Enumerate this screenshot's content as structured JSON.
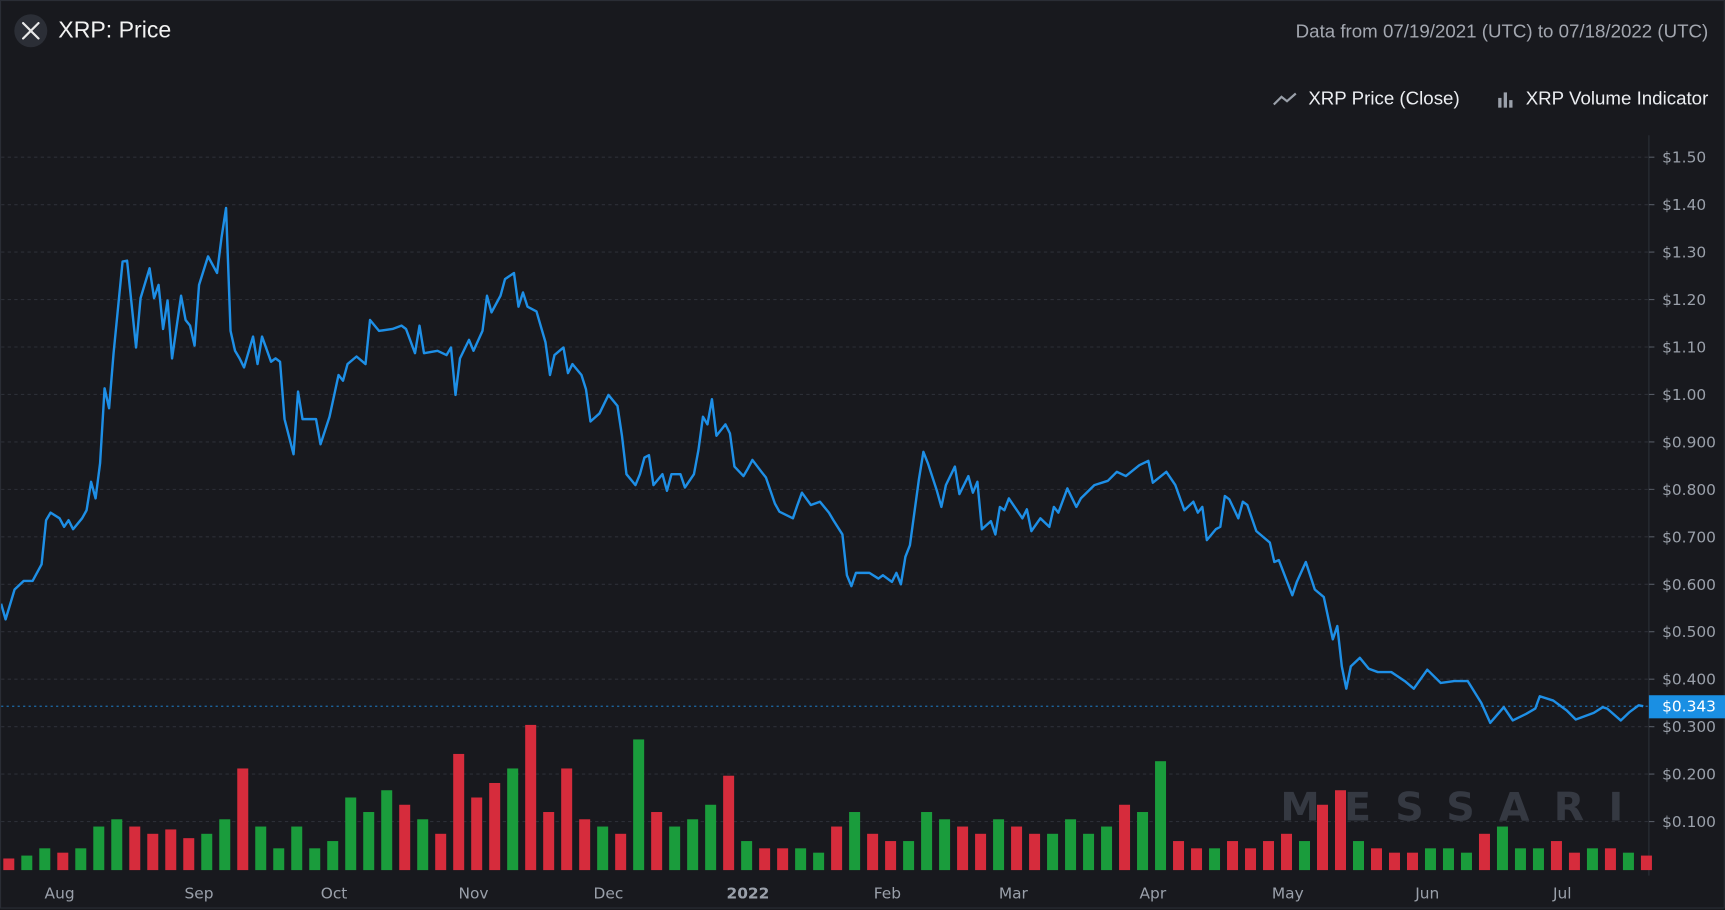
{
  "header": {
    "title": "XRP: Price",
    "date_range": "Data from 07/19/2021 (UTC) to 07/18/2022 (UTC)",
    "logo_icon": "xrp-logo-icon"
  },
  "legend": [
    {
      "label": "XRP Price (Close)",
      "icon": "line-chart-icon"
    },
    {
      "label": "XRP Volume Indicator",
      "icon": "bar-chart-icon"
    }
  ],
  "watermark": "MESSARI",
  "colors": {
    "line": "#1e8fe6",
    "up": "#1a9c3c",
    "down": "#d62c3c",
    "grid": "#2c2f37",
    "tag": "#1a8fe3"
  },
  "chart_data": {
    "type": "line",
    "title": "XRP: Price",
    "start_date": "07/19/2021",
    "end_date": "07/18/2022",
    "ylim": [
      0,
      1.55
    ],
    "y_ticks": [
      "$0.100",
      "$0.200",
      "$0.300",
      "$0.400",
      "$0.500",
      "$0.600",
      "$0.700",
      "$0.800",
      "$0.900",
      "$1.00",
      "$1.10",
      "$1.20",
      "$1.30",
      "$1.40",
      "$1.50"
    ],
    "y_tick_values": [
      0.1,
      0.2,
      0.3,
      0.4,
      0.5,
      0.6,
      0.7,
      0.8,
      0.9,
      1.0,
      1.1,
      1.2,
      1.3,
      1.4,
      1.5
    ],
    "x_ticks": [
      {
        "label": "Aug",
        "day": 13
      },
      {
        "label": "Sep",
        "day": 44
      },
      {
        "label": "Oct",
        "day": 74
      },
      {
        "label": "Nov",
        "day": 105
      },
      {
        "label": "Dec",
        "day": 135
      },
      {
        "label": "2022",
        "day": 166
      },
      {
        "label": "Feb",
        "day": 197
      },
      {
        "label": "Mar",
        "day": 225
      },
      {
        "label": "Apr",
        "day": 256
      },
      {
        "label": "May",
        "day": 286
      },
      {
        "label": "Jun",
        "day": 317
      },
      {
        "label": "Jul",
        "day": 347
      }
    ],
    "current_price_label": "$0.343",
    "current_price": 0.343,
    "series": [
      {
        "name": "XRP Price (Close)",
        "unit": "USD",
        "points_day_price": [
          [
            0,
            0.559
          ],
          [
            1,
            0.526
          ],
          [
            3,
            0.589
          ],
          [
            5,
            0.607
          ],
          [
            7,
            0.607
          ],
          [
            9,
            0.642
          ],
          [
            10,
            0.735
          ],
          [
            11,
            0.751
          ],
          [
            13,
            0.739
          ],
          [
            14,
            0.721
          ],
          [
            15,
            0.735
          ],
          [
            16,
            0.716
          ],
          [
            18,
            0.739
          ],
          [
            19,
            0.756
          ],
          [
            20,
            0.816
          ],
          [
            21,
            0.781
          ],
          [
            22,
            0.855
          ],
          [
            23,
            1.013
          ],
          [
            24,
            0.971
          ],
          [
            25,
            1.087
          ],
          [
            27,
            1.28
          ],
          [
            28,
            1.282
          ],
          [
            29,
            1.191
          ],
          [
            30,
            1.099
          ],
          [
            31,
            1.203
          ],
          [
            33,
            1.266
          ],
          [
            34,
            1.203
          ],
          [
            35,
            1.231
          ],
          [
            36,
            1.138
          ],
          [
            37,
            1.198
          ],
          [
            38,
            1.076
          ],
          [
            40,
            1.208
          ],
          [
            41,
            1.157
          ],
          [
            42,
            1.145
          ],
          [
            43,
            1.103
          ],
          [
            44,
            1.231
          ],
          [
            45,
            1.261
          ],
          [
            46,
            1.291
          ],
          [
            48,
            1.256
          ],
          [
            49,
            1.331
          ],
          [
            50,
            1.393
          ],
          [
            51,
            1.134
          ],
          [
            52,
            1.092
          ],
          [
            53,
            1.076
          ],
          [
            54,
            1.057
          ],
          [
            56,
            1.122
          ],
          [
            57,
            1.064
          ],
          [
            58,
            1.122
          ],
          [
            60,
            1.069
          ],
          [
            61,
            1.076
          ],
          [
            62,
            1.069
          ],
          [
            63,
            0.948
          ],
          [
            65,
            0.874
          ],
          [
            66,
            1.006
          ],
          [
            67,
            0.948
          ],
          [
            70,
            0.948
          ],
          [
            71,
            0.895
          ],
          [
            73,
            0.953
          ],
          [
            75,
            1.041
          ],
          [
            76,
            1.029
          ],
          [
            77,
            1.064
          ],
          [
            79,
            1.08
          ],
          [
            81,
            1.064
          ],
          [
            82,
            1.157
          ],
          [
            84,
            1.134
          ],
          [
            87,
            1.138
          ],
          [
            89,
            1.145
          ],
          [
            90,
            1.138
          ],
          [
            92,
            1.087
          ],
          [
            93,
            1.145
          ],
          [
            94,
            1.087
          ],
          [
            97,
            1.092
          ],
          [
            99,
            1.083
          ],
          [
            100,
            1.099
          ],
          [
            101,
            0.999
          ],
          [
            102,
            1.076
          ],
          [
            104,
            1.115
          ],
          [
            105,
            1.092
          ],
          [
            107,
            1.134
          ],
          [
            108,
            1.208
          ],
          [
            109,
            1.173
          ],
          [
            111,
            1.208
          ],
          [
            112,
            1.243
          ],
          [
            114,
            1.256
          ],
          [
            115,
            1.185
          ],
          [
            116,
            1.215
          ],
          [
            117,
            1.185
          ],
          [
            119,
            1.175
          ],
          [
            121,
            1.11
          ],
          [
            122,
            1.041
          ],
          [
            123,
            1.083
          ],
          [
            125,
            1.099
          ],
          [
            126,
            1.045
          ],
          [
            127,
            1.064
          ],
          [
            129,
            1.041
          ],
          [
            130,
            1.011
          ],
          [
            131,
            0.943
          ],
          [
            133,
            0.96
          ],
          [
            135,
            0.999
          ],
          [
            137,
            0.976
          ],
          [
            138,
            0.913
          ],
          [
            139,
            0.832
          ],
          [
            141,
            0.809
          ],
          [
            142,
            0.832
          ],
          [
            143,
            0.867
          ],
          [
            144,
            0.872
          ],
          [
            145,
            0.809
          ],
          [
            147,
            0.832
          ],
          [
            148,
            0.797
          ],
          [
            149,
            0.832
          ],
          [
            151,
            0.832
          ],
          [
            152,
            0.804
          ],
          [
            154,
            0.832
          ],
          [
            155,
            0.883
          ],
          [
            156,
            0.953
          ],
          [
            157,
            0.937
          ],
          [
            158,
            0.99
          ],
          [
            159,
            0.913
          ],
          [
            161,
            0.937
          ],
          [
            162,
            0.918
          ],
          [
            163,
            0.848
          ],
          [
            165,
            0.828
          ],
          [
            166,
            0.844
          ],
          [
            167,
            0.862
          ],
          [
            169,
            0.837
          ],
          [
            170,
            0.825
          ],
          [
            172,
            0.77
          ],
          [
            173,
            0.753
          ],
          [
            176,
            0.739
          ],
          [
            177,
            0.767
          ],
          [
            178,
            0.793
          ],
          [
            180,
            0.767
          ],
          [
            182,
            0.774
          ],
          [
            184,
            0.751
          ],
          [
            185,
            0.735
          ],
          [
            187,
            0.705
          ],
          [
            188,
            0.619
          ],
          [
            189,
            0.596
          ],
          [
            190,
            0.624
          ],
          [
            193,
            0.624
          ],
          [
            195,
            0.612
          ],
          [
            196,
            0.619
          ],
          [
            198,
            0.605
          ],
          [
            199,
            0.624
          ],
          [
            200,
            0.6
          ],
          [
            201,
            0.658
          ],
          [
            202,
            0.682
          ],
          [
            204,
            0.821
          ],
          [
            205,
            0.879
          ],
          [
            206,
            0.855
          ],
          [
            208,
            0.797
          ],
          [
            209,
            0.763
          ],
          [
            210,
            0.809
          ],
          [
            212,
            0.848
          ],
          [
            213,
            0.79
          ],
          [
            215,
            0.828
          ],
          [
            216,
            0.793
          ],
          [
            217,
            0.816
          ],
          [
            218,
            0.716
          ],
          [
            220,
            0.733
          ],
          [
            221,
            0.705
          ],
          [
            222,
            0.763
          ],
          [
            223,
            0.756
          ],
          [
            224,
            0.781
          ],
          [
            227,
            0.739
          ],
          [
            228,
            0.758
          ],
          [
            229,
            0.712
          ],
          [
            231,
            0.739
          ],
          [
            233,
            0.721
          ],
          [
            234,
            0.763
          ],
          [
            235,
            0.751
          ],
          [
            237,
            0.802
          ],
          [
            239,
            0.763
          ],
          [
            240,
            0.781
          ],
          [
            243,
            0.809
          ],
          [
            246,
            0.818
          ],
          [
            248,
            0.837
          ],
          [
            250,
            0.828
          ],
          [
            253,
            0.851
          ],
          [
            255,
            0.86
          ],
          [
            256,
            0.814
          ],
          [
            259,
            0.837
          ],
          [
            261,
            0.809
          ],
          [
            263,
            0.756
          ],
          [
            265,
            0.774
          ],
          [
            266,
            0.751
          ],
          [
            267,
            0.763
          ],
          [
            268,
            0.693
          ],
          [
            270,
            0.716
          ],
          [
            271,
            0.721
          ],
          [
            272,
            0.786
          ],
          [
            273,
            0.779
          ],
          [
            275,
            0.739
          ],
          [
            276,
            0.774
          ],
          [
            277,
            0.767
          ],
          [
            279,
            0.712
          ],
          [
            282,
            0.688
          ],
          [
            283,
            0.647
          ],
          [
            284,
            0.651
          ],
          [
            287,
            0.577
          ],
          [
            288,
            0.605
          ],
          [
            290,
            0.647
          ],
          [
            292,
            0.589
          ],
          [
            294,
            0.573
          ],
          [
            296,
            0.484
          ],
          [
            297,
            0.512
          ],
          [
            298,
            0.427
          ],
          [
            299,
            0.38
          ],
          [
            300,
            0.427
          ],
          [
            302,
            0.445
          ],
          [
            304,
            0.422
          ],
          [
            306,
            0.415
          ],
          [
            309,
            0.415
          ],
          [
            312,
            0.396
          ],
          [
            314,
            0.38
          ],
          [
            317,
            0.42
          ],
          [
            320,
            0.392
          ],
          [
            323,
            0.396
          ],
          [
            326,
            0.396
          ],
          [
            329,
            0.35
          ],
          [
            331,
            0.308
          ],
          [
            334,
            0.341
          ],
          [
            336,
            0.313
          ],
          [
            339,
            0.327
          ],
          [
            341,
            0.338
          ],
          [
            342,
            0.364
          ],
          [
            345,
            0.355
          ],
          [
            348,
            0.334
          ],
          [
            350,
            0.315
          ],
          [
            354,
            0.329
          ],
          [
            356,
            0.341
          ],
          [
            357,
            0.338
          ],
          [
            360,
            0.313
          ],
          [
            362,
            0.331
          ],
          [
            364,
            0.345
          ],
          [
            365,
            0.343
          ]
        ]
      },
      {
        "name": "XRP Volume Indicator",
        "unit": "relative (max = 1)",
        "sample_every_days": 4,
        "values": [
          0.08,
          0.1,
          0.15,
          0.12,
          0.15,
          0.3,
          0.35,
          0.3,
          0.25,
          0.28,
          0.22,
          0.25,
          0.35,
          0.7,
          0.3,
          0.15,
          0.3,
          0.15,
          0.2,
          0.5,
          0.4,
          0.55,
          0.45,
          0.35,
          0.25,
          0.8,
          0.5,
          0.6,
          0.7,
          1.0,
          0.4,
          0.7,
          0.35,
          0.3,
          0.25,
          0.9,
          0.4,
          0.3,
          0.35,
          0.45,
          0.65,
          0.2,
          0.15,
          0.15,
          0.15,
          0.12,
          0.3,
          0.4,
          0.25,
          0.2,
          0.2,
          0.4,
          0.35,
          0.3,
          0.25,
          0.35,
          0.3,
          0.25,
          0.25,
          0.35,
          0.25,
          0.3,
          0.45,
          0.4,
          0.75,
          0.2,
          0.15,
          0.15,
          0.2,
          0.15,
          0.2,
          0.25,
          0.2,
          0.45,
          0.55,
          0.2,
          0.15,
          0.12,
          0.12,
          0.15,
          0.15,
          0.12,
          0.25,
          0.3,
          0.15,
          0.15,
          0.2,
          0.12,
          0.15,
          0.15,
          0.12,
          0.1
        ]
      }
    ]
  }
}
